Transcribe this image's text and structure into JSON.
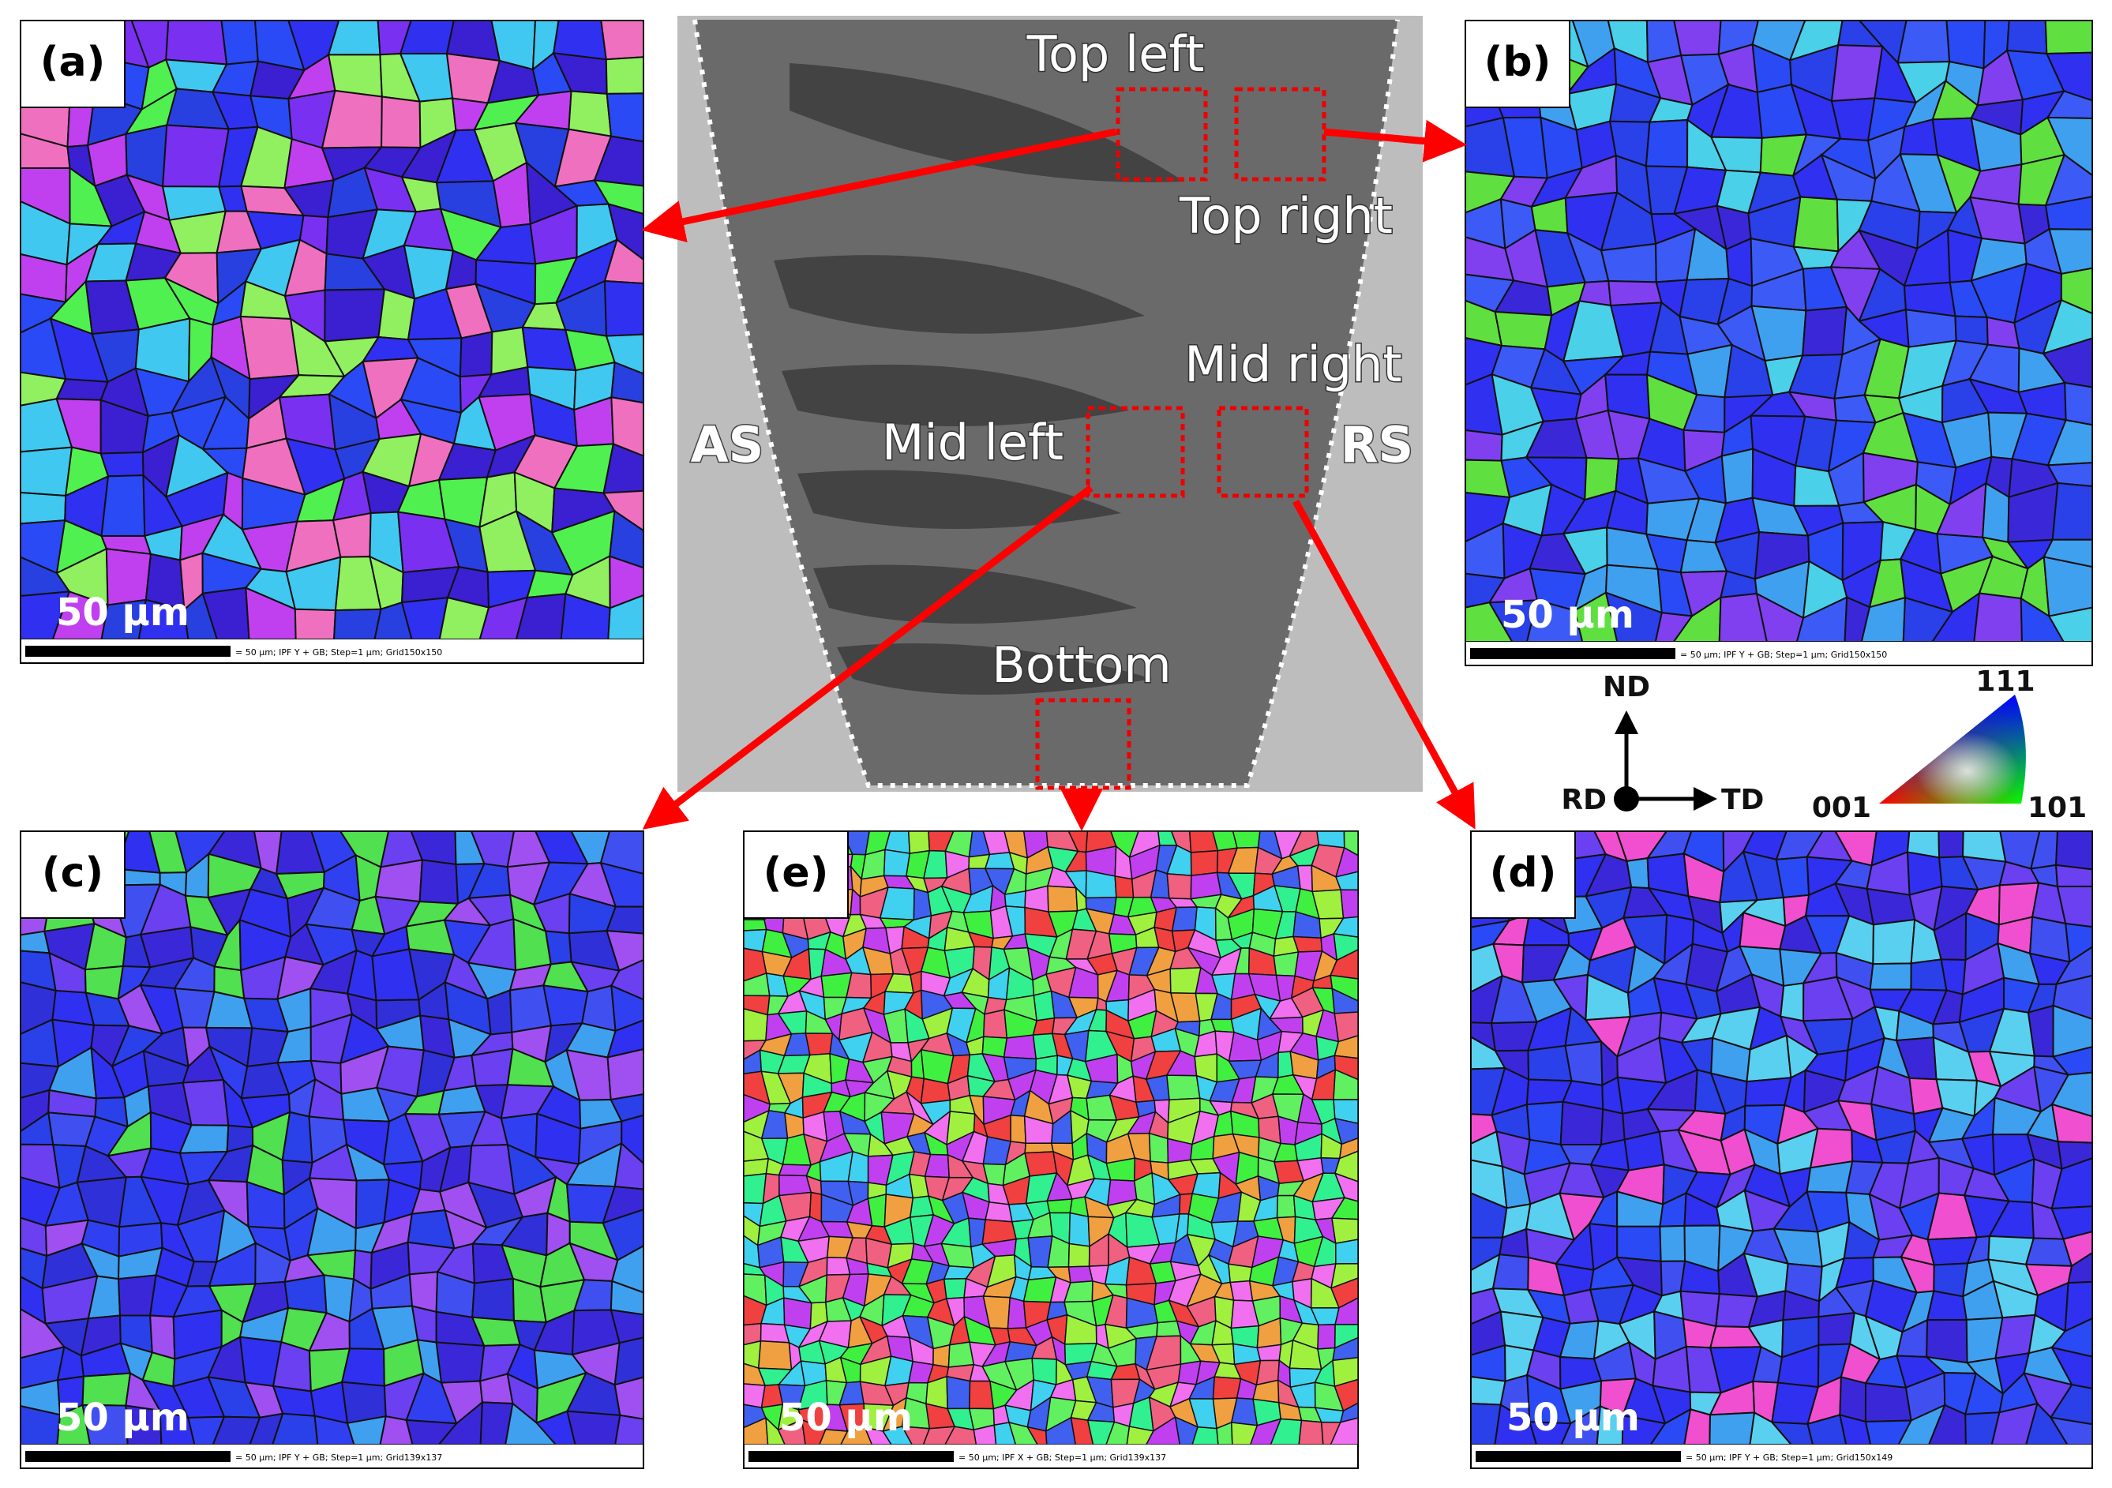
{
  "panels": [
    {
      "label": "(a)",
      "scale": "50 µm",
      "footer": "= 50 µm; IPF Y + GB; Step=1 µm; Grid150x150"
    },
    {
      "label": "(b)",
      "scale": "50 µm",
      "footer": "= 50 µm; IPF Y + GB; Step=1 µm; Grid150x150"
    },
    {
      "label": "(c)",
      "scale": "50 µm",
      "footer": "= 50 µm; IPF Y + GB; Step=1 µm; Grid139x137"
    },
    {
      "label": "(e)",
      "scale": "50 µm",
      "footer": "= 50 µm; IPF X + GB; Step=1 µm; Grid139x137"
    },
    {
      "label": "(d)",
      "scale": "50 µm",
      "footer": "= 50 µm; IPF Y + GB; Step=1 µm; Grid150x149"
    }
  ],
  "center": {
    "regions": [
      "Top left",
      "Top right",
      "Mid right",
      "Mid left",
      "Bottom"
    ],
    "advancing_side": "AS",
    "retreating_side": "RS"
  },
  "axes": {
    "up": "ND",
    "origin": "RD",
    "right": "TD"
  },
  "ipf_key": {
    "top": "111",
    "left": "001",
    "right": "101"
  }
}
